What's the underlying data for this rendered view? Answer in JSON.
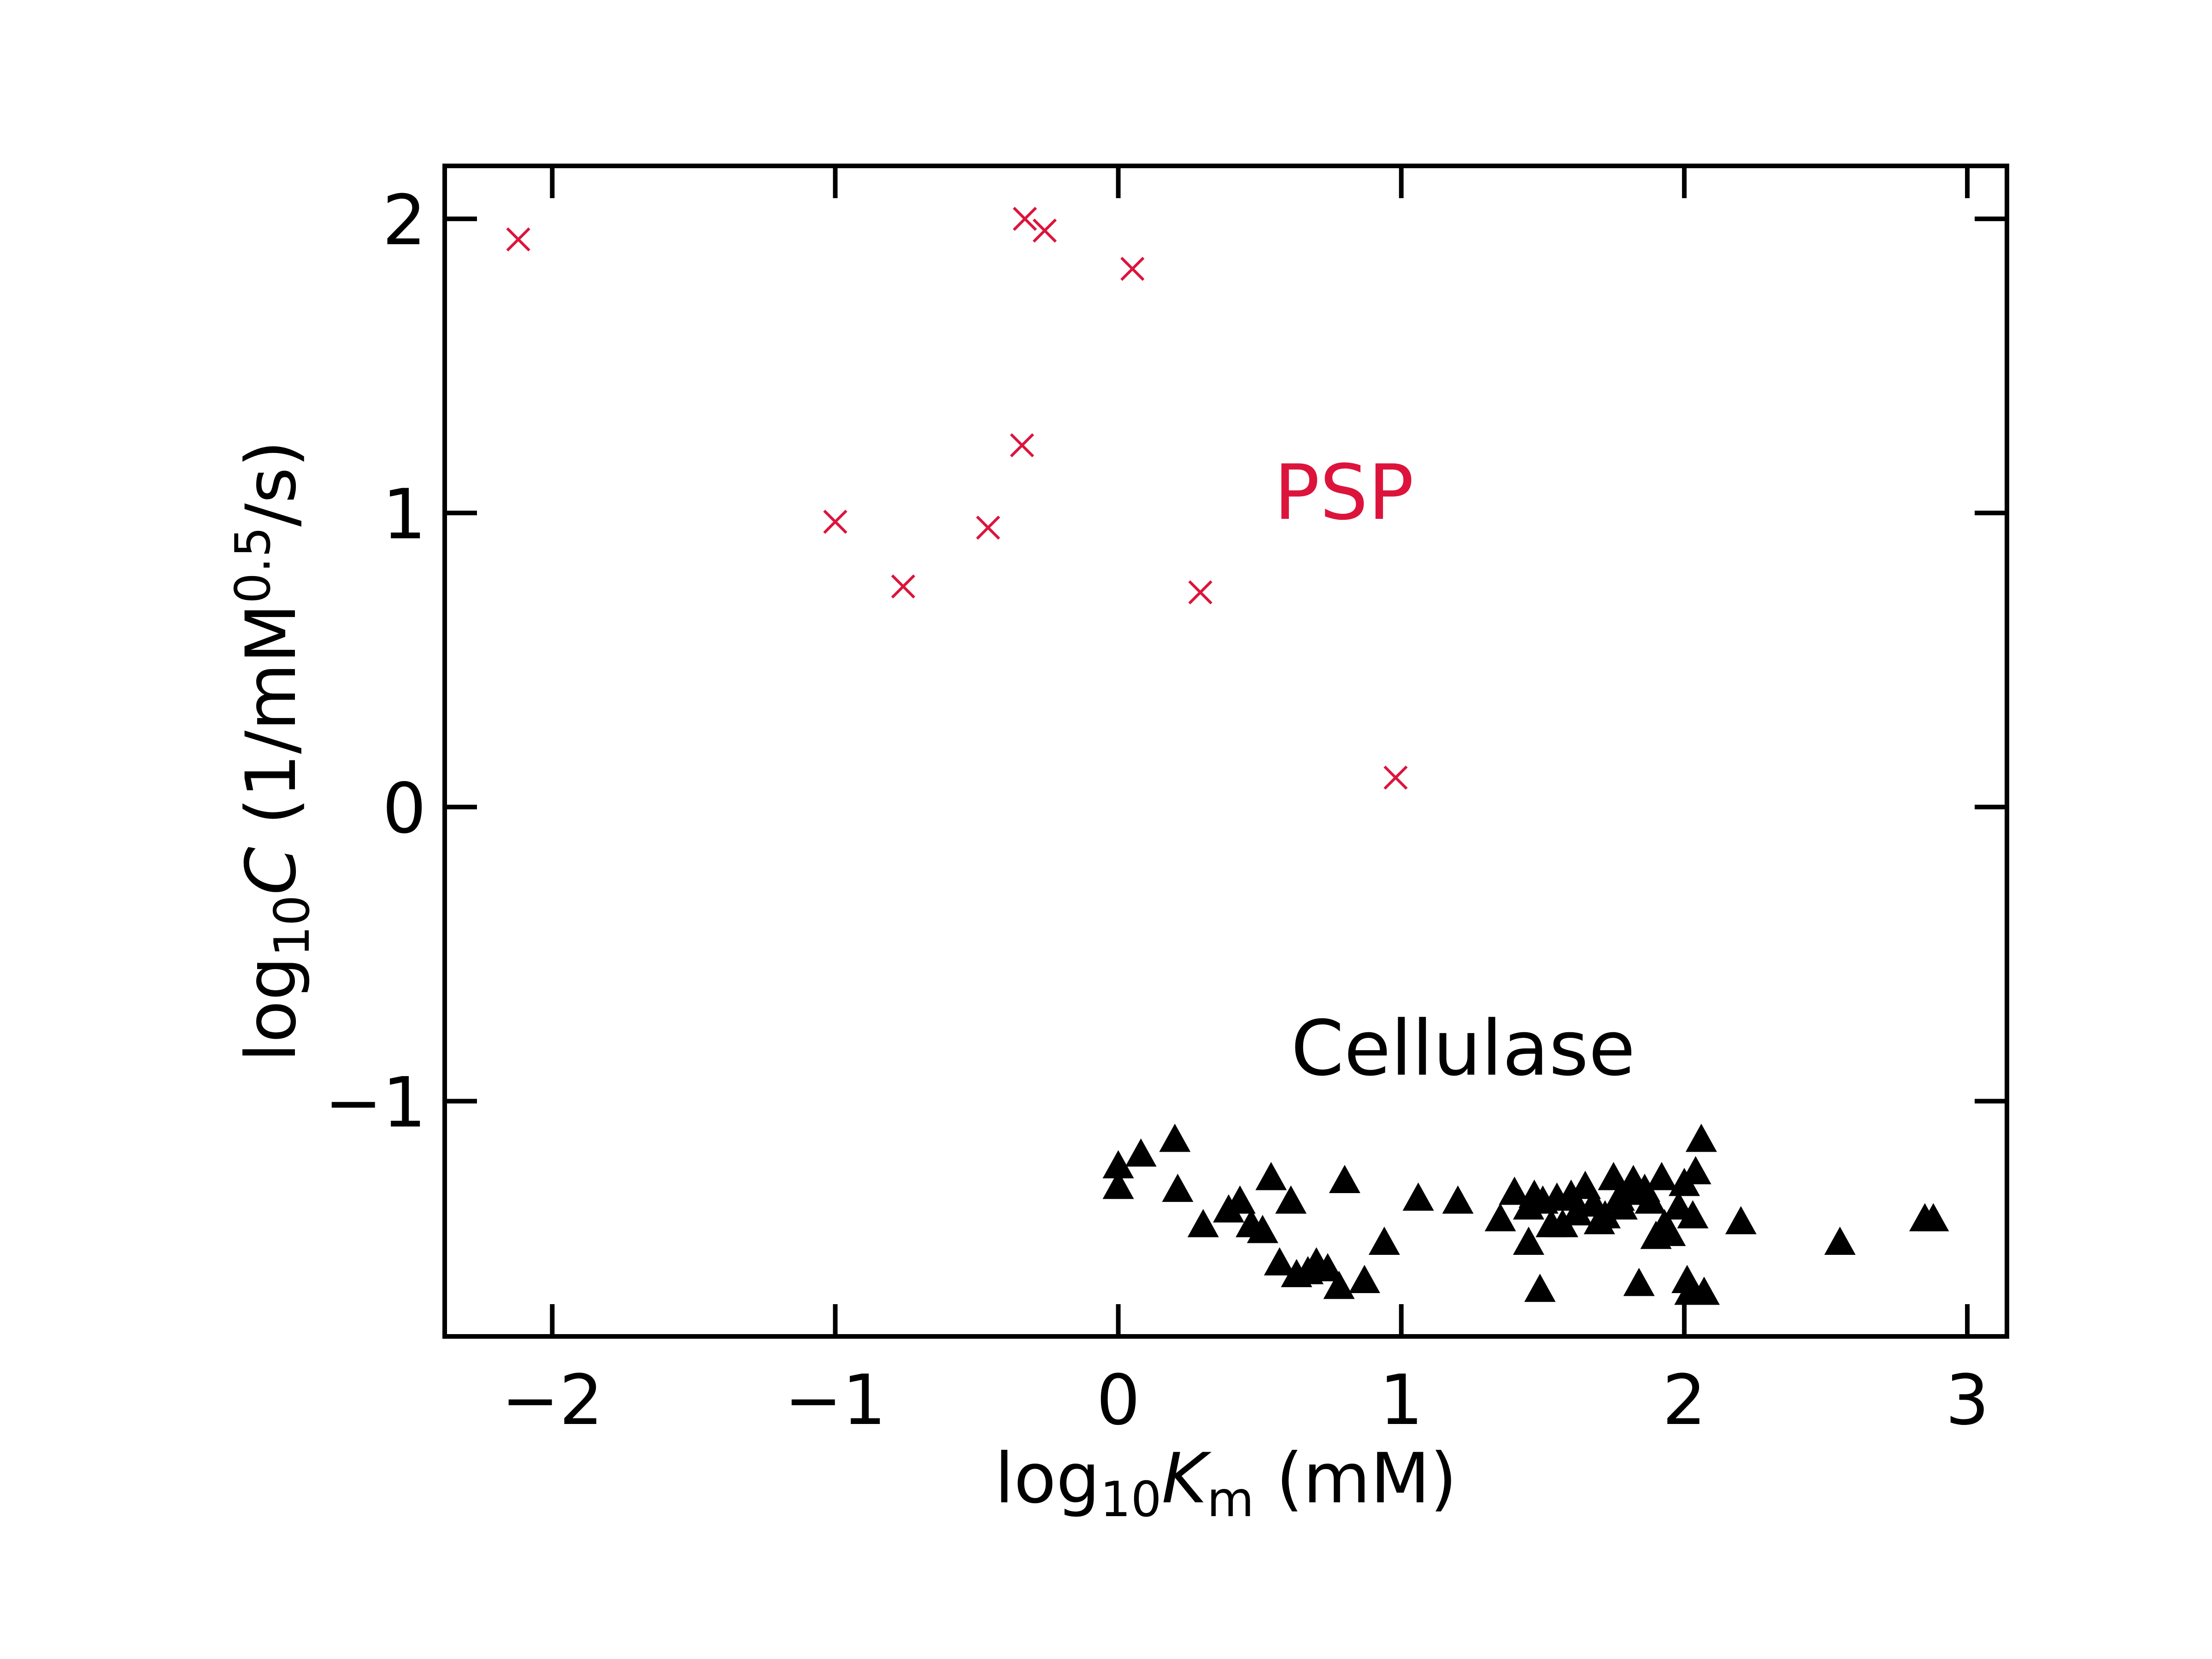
{
  "chart_data": {
    "type": "scatter",
    "xlim": [
      -2.38,
      3.14
    ],
    "ylim": [
      -1.8,
      2.18
    ],
    "x_ticks": [
      -2,
      -1,
      0,
      1,
      2,
      3
    ],
    "y_ticks": [
      -1,
      0,
      1,
      2
    ],
    "x_tick_labels": [
      "−2",
      "−1",
      "0",
      "1",
      "2",
      "3"
    ],
    "y_tick_labels": [
      "−1",
      "0",
      "1",
      "2"
    ],
    "xlabel": {
      "prefix": "log",
      "sub": "10",
      "var": "K",
      "var_sub": "m",
      "suffix": " (mM)"
    },
    "ylabel": {
      "prefix": "log",
      "sub": "10",
      "var": "C",
      "suffix_a": " (1/mM",
      "sup": "0.5",
      "suffix_b": "/s)"
    },
    "grid": false,
    "series": [
      {
        "name": "PSP",
        "marker": "x",
        "color": "#dc143c",
        "label_position": [
          0.55,
          0.98
        ],
        "points": [
          [
            -2.12,
            1.93
          ],
          [
            -0.33,
            2.0
          ],
          [
            -0.26,
            1.96
          ],
          [
            0.05,
            1.83
          ],
          [
            -0.34,
            1.23
          ],
          [
            -1.0,
            0.97
          ],
          [
            -0.46,
            0.95
          ],
          [
            -0.76,
            0.75
          ],
          [
            0.29,
            0.73
          ],
          [
            0.98,
            0.1
          ]
        ]
      },
      {
        "name": "Cellulase",
        "marker": "triangle",
        "color": "#000000",
        "label_position": [
          0.61,
          -0.91
        ],
        "points": [
          [
            0.0,
            -1.22
          ],
          [
            0.0,
            -1.29
          ],
          [
            0.08,
            -1.18
          ],
          [
            0.2,
            -1.13
          ],
          [
            0.21,
            -1.3
          ],
          [
            0.3,
            -1.42
          ],
          [
            0.39,
            -1.37
          ],
          [
            0.43,
            -1.34
          ],
          [
            0.47,
            -1.42
          ],
          [
            0.51,
            -1.44
          ],
          [
            0.54,
            -1.26
          ],
          [
            0.57,
            -1.55
          ],
          [
            0.61,
            -1.34
          ],
          [
            0.63,
            -1.59
          ],
          [
            0.67,
            -1.58
          ],
          [
            0.7,
            -1.55
          ],
          [
            0.74,
            -1.57
          ],
          [
            0.78,
            -1.63
          ],
          [
            0.8,
            -1.27
          ],
          [
            0.87,
            -1.61
          ],
          [
            0.94,
            -1.48
          ],
          [
            1.06,
            -1.33
          ],
          [
            1.2,
            -1.34
          ],
          [
            1.35,
            -1.4
          ],
          [
            1.4,
            -1.31
          ],
          [
            1.45,
            -1.36
          ],
          [
            1.45,
            -1.48
          ],
          [
            1.47,
            -1.32
          ],
          [
            1.49,
            -1.64
          ],
          [
            1.5,
            -1.34
          ],
          [
            1.53,
            -1.42
          ],
          [
            1.55,
            -1.33
          ],
          [
            1.57,
            -1.42
          ],
          [
            1.6,
            -1.32
          ],
          [
            1.62,
            -1.38
          ],
          [
            1.65,
            -1.29
          ],
          [
            1.68,
            -1.35
          ],
          [
            1.7,
            -1.41
          ],
          [
            1.72,
            -1.39
          ],
          [
            1.75,
            -1.26
          ],
          [
            1.77,
            -1.33
          ],
          [
            1.78,
            -1.36
          ],
          [
            1.8,
            -1.31
          ],
          [
            1.82,
            -1.27
          ],
          [
            1.84,
            -1.62
          ],
          [
            1.86,
            -1.3
          ],
          [
            1.88,
            -1.34
          ],
          [
            1.9,
            -1.46
          ],
          [
            1.92,
            -1.26
          ],
          [
            1.93,
            -1.42
          ],
          [
            1.95,
            -1.45
          ],
          [
            1.98,
            -1.36
          ],
          [
            2.0,
            -1.28
          ],
          [
            2.01,
            -1.61
          ],
          [
            2.02,
            -1.65
          ],
          [
            2.03,
            -1.39
          ],
          [
            2.04,
            -1.24
          ],
          [
            2.06,
            -1.13
          ],
          [
            2.07,
            -1.65
          ],
          [
            2.2,
            -1.41
          ],
          [
            2.55,
            -1.48
          ],
          [
            2.85,
            -1.4
          ],
          [
            2.88,
            -1.4
          ]
        ]
      }
    ]
  }
}
